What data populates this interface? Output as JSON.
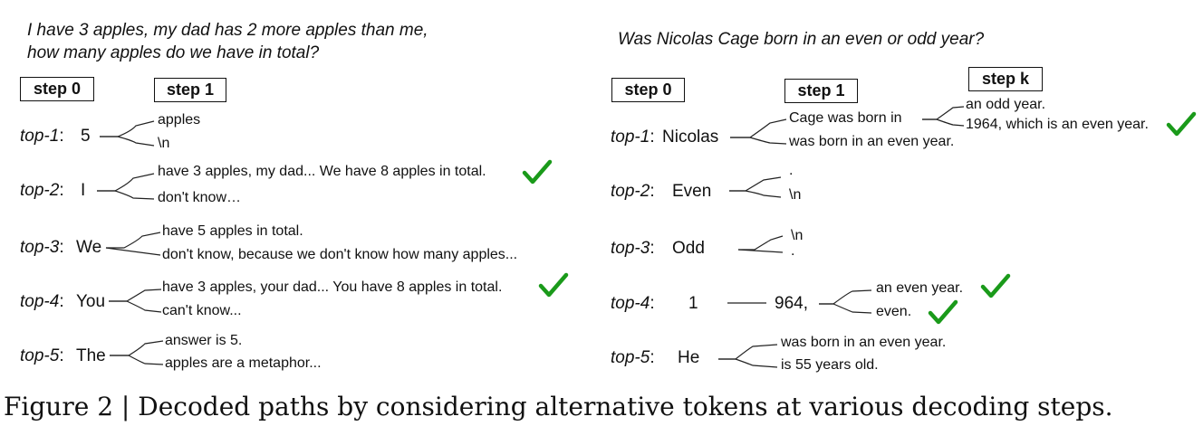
{
  "caption": "Figure 2 | Decoded paths by considering alternative tokens at various decoding steps.",
  "left": {
    "question_line1": "I have 3 apples, my dad has 2 more apples than me,",
    "question_line2": "how many apples do we have in total?",
    "step0": "step 0",
    "step1": "step 1",
    "rows": [
      {
        "label": "top-1",
        "sep": ":",
        "token": "5",
        "c1": "apples",
        "c2": "\\n"
      },
      {
        "label": "top-2",
        "sep": ":",
        "token": "I",
        "c1": "have 3 apples, my dad... We have 8 apples in total.",
        "c2": "don't know…"
      },
      {
        "label": "top-3",
        "sep": ":",
        "token": "We",
        "c1": "have 5 apples in total.",
        "c2": "don't know, because we don't know how many apples..."
      },
      {
        "label": "top-4",
        "sep": ":",
        "token": "You",
        "c1": "have 3 apples, your dad... You have 8 apples in total.",
        "c2": "can't know..."
      },
      {
        "label": "top-5",
        "sep": ":",
        "token": "The",
        "c1": "answer is 5.",
        "c2": "apples are a metaphor..."
      }
    ]
  },
  "right": {
    "question": "Was Nicolas Cage born in an even or odd year?",
    "step0": "step 0",
    "step1": "step 1",
    "stepk": "step k",
    "rows": [
      {
        "label": "top-1",
        "sep": ":",
        "token": "Nicolas",
        "c1": "Cage was born in",
        "c2": "was born in an even year.",
        "k1": "an odd year.",
        "k2": "1964, which is an even year."
      },
      {
        "label": "top-2",
        "sep": ":",
        "token": "Even",
        "c1": ".",
        "c2": "\\n"
      },
      {
        "label": "top-3",
        "sep": ":",
        "token": "Odd",
        "c1": "\\n",
        "c2": "."
      },
      {
        "label": "top-4",
        "sep": ":",
        "token": "1",
        "mid": "964,",
        "k1": "an even year.",
        "k2": "even."
      },
      {
        "label": "top-5",
        "sep": ":",
        "token": "He",
        "c1": "was born in an even year.",
        "c2": "is 55 years old."
      }
    ]
  },
  "check_color": "#1a9a1a",
  "check_icon": "check-icon"
}
